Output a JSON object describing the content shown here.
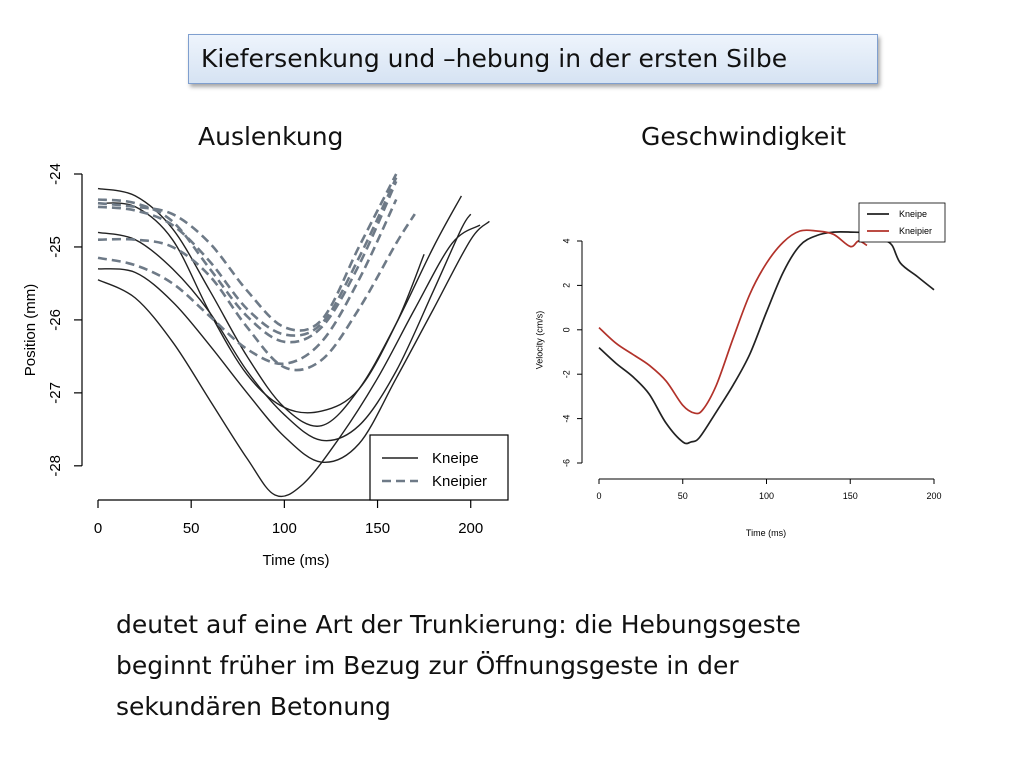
{
  "slide": {
    "title": "Kiefersenkung und –hebung in der ersten Silbe",
    "left_heading": "Auslenkung",
    "right_heading": "Geschwindigkeit",
    "caption_lines": [
      "deutet auf eine Art der Trunkierung: die Hebungsgeste",
      "beginnt früher im Bezug zur Öffnungsgeste in der",
      "sekundären Betonung"
    ]
  },
  "chart_data": [
    {
      "type": "line",
      "title": "",
      "xlabel": "Time (ms)",
      "ylabel": "Position (mm)",
      "xlim": [
        0,
        220
      ],
      "ylim": [
        -28.4,
        -24
      ],
      "xticks": [
        0,
        50,
        100,
        150,
        200
      ],
      "yticks": [
        -24,
        -25,
        -26,
        -27,
        -28
      ],
      "ytick_labels": [
        "-24",
        "-25",
        "-26",
        "-27",
        "-28"
      ],
      "grid": false,
      "legend": {
        "position": "bottom-right",
        "entries": [
          "Kneipe",
          "Kneipier"
        ]
      },
      "series": [
        {
          "name": "Kneipe",
          "style": "solid",
          "color": "#222222",
          "x": [
            0,
            20,
            40,
            60,
            80,
            95,
            110,
            130,
            150,
            170,
            190,
            205
          ],
          "y": [
            -25.45,
            -25.7,
            -26.3,
            -27.1,
            -27.9,
            -28.4,
            -28.25,
            -27.6,
            -26.8,
            -25.85,
            -24.95,
            -24.7
          ]
        },
        {
          "name": "Kneipe",
          "style": "solid",
          "color": "#222222",
          "x": [
            0,
            20,
            40,
            60,
            80,
            100,
            120,
            140,
            160,
            180,
            200,
            210
          ],
          "y": [
            -25.3,
            -25.35,
            -25.75,
            -26.35,
            -27.0,
            -27.6,
            -27.95,
            -27.7,
            -26.8,
            -25.85,
            -24.9,
            -24.65
          ]
        },
        {
          "name": "Kneipe",
          "style": "solid",
          "color": "#222222",
          "x": [
            0,
            20,
            40,
            60,
            80,
            100,
            120,
            140,
            160,
            180,
            195,
            200
          ],
          "y": [
            -24.8,
            -24.9,
            -25.3,
            -25.9,
            -26.7,
            -27.3,
            -27.65,
            -27.45,
            -26.7,
            -25.6,
            -24.75,
            -24.55
          ]
        },
        {
          "name": "Kneipe",
          "style": "solid",
          "color": "#222222",
          "x": [
            0,
            20,
            40,
            60,
            80,
            100,
            120,
            140,
            160,
            180,
            195
          ],
          "y": [
            -24.2,
            -24.3,
            -24.75,
            -25.6,
            -26.5,
            -27.2,
            -27.45,
            -26.95,
            -26.05,
            -25.0,
            -24.3
          ]
        },
        {
          "name": "Kneipe",
          "style": "solid",
          "color": "#222222",
          "x": [
            0,
            20,
            40,
            60,
            80,
            100,
            120,
            140,
            160,
            175
          ],
          "y": [
            -24.4,
            -24.45,
            -24.9,
            -25.9,
            -26.75,
            -27.2,
            -27.25,
            -26.95,
            -26.05,
            -25.1
          ]
        },
        {
          "name": "Kneipier",
          "style": "dashed",
          "color": "#6e7a87",
          "x": [
            0,
            20,
            40,
            60,
            80,
            100,
            120,
            140,
            160,
            170
          ],
          "y": [
            -24.9,
            -24.9,
            -25.0,
            -25.4,
            -26.1,
            -26.65,
            -26.55,
            -25.85,
            -24.95,
            -24.55
          ]
        },
        {
          "name": "Kneipier",
          "style": "dashed",
          "color": "#6e7a87",
          "x": [
            0,
            20,
            40,
            60,
            80,
            100,
            120,
            140,
            160
          ],
          "y": [
            -25.15,
            -25.25,
            -25.5,
            -25.95,
            -26.4,
            -26.6,
            -26.3,
            -25.45,
            -24.35
          ]
        },
        {
          "name": "Kneipier",
          "style": "dashed",
          "color": "#6e7a87",
          "x": [
            0,
            20,
            40,
            60,
            80,
            100,
            120,
            140,
            160
          ],
          "y": [
            -24.35,
            -24.4,
            -24.65,
            -25.3,
            -25.95,
            -26.3,
            -26.1,
            -25.25,
            -24.1
          ]
        },
        {
          "name": "Kneipier",
          "style": "dashed",
          "color": "#6e7a87",
          "x": [
            0,
            20,
            40,
            60,
            80,
            100,
            120,
            140,
            160
          ],
          "y": [
            -24.45,
            -24.5,
            -24.7,
            -25.2,
            -25.85,
            -26.2,
            -26.05,
            -25.15,
            -24.05
          ]
        },
        {
          "name": "Kneipier",
          "style": "dashed",
          "color": "#6e7a87",
          "x": [
            0,
            20,
            40,
            60,
            80,
            100,
            120,
            140,
            160
          ],
          "y": [
            -24.4,
            -24.45,
            -24.55,
            -24.95,
            -25.6,
            -26.1,
            -26.0,
            -25.0,
            -24.0
          ]
        }
      ]
    },
    {
      "type": "line",
      "title": "",
      "xlabel": "Time (ms)",
      "ylabel": "Velocity (cm/s)",
      "xlim": [
        0,
        200
      ],
      "ylim": [
        -6,
        4
      ],
      "xticks": [
        0,
        50,
        100,
        150,
        200
      ],
      "yticks": [
        4,
        2,
        0,
        -2,
        -4,
        -6
      ],
      "grid": false,
      "legend": {
        "position": "top-right",
        "entries": [
          "Kneipe",
          "Kneipier"
        ]
      },
      "series": [
        {
          "name": "Kneipe",
          "color": "#222222",
          "x": [
            0,
            10,
            20,
            30,
            40,
            50,
            55,
            60,
            70,
            80,
            90,
            100,
            110,
            120,
            130,
            140,
            150,
            160,
            170,
            175,
            180,
            190,
            200
          ],
          "y": [
            -0.8,
            -1.5,
            -2.1,
            -2.9,
            -4.2,
            -5.05,
            -5.05,
            -4.85,
            -3.7,
            -2.5,
            -1.1,
            0.8,
            2.6,
            3.8,
            4.25,
            4.4,
            4.4,
            4.35,
            4.05,
            3.8,
            3.0,
            2.4,
            1.8
          ]
        },
        {
          "name": "Kneipier",
          "color": "#b2322a",
          "x": [
            0,
            10,
            20,
            30,
            40,
            50,
            57,
            62,
            70,
            80,
            90,
            100,
            110,
            120,
            130,
            140,
            150,
            155,
            160
          ],
          "y": [
            0.1,
            -0.6,
            -1.1,
            -1.6,
            -2.3,
            -3.4,
            -3.75,
            -3.6,
            -2.5,
            -0.4,
            1.6,
            3.0,
            3.95,
            4.45,
            4.45,
            4.3,
            3.75,
            4.0,
            3.8
          ]
        }
      ]
    }
  ]
}
